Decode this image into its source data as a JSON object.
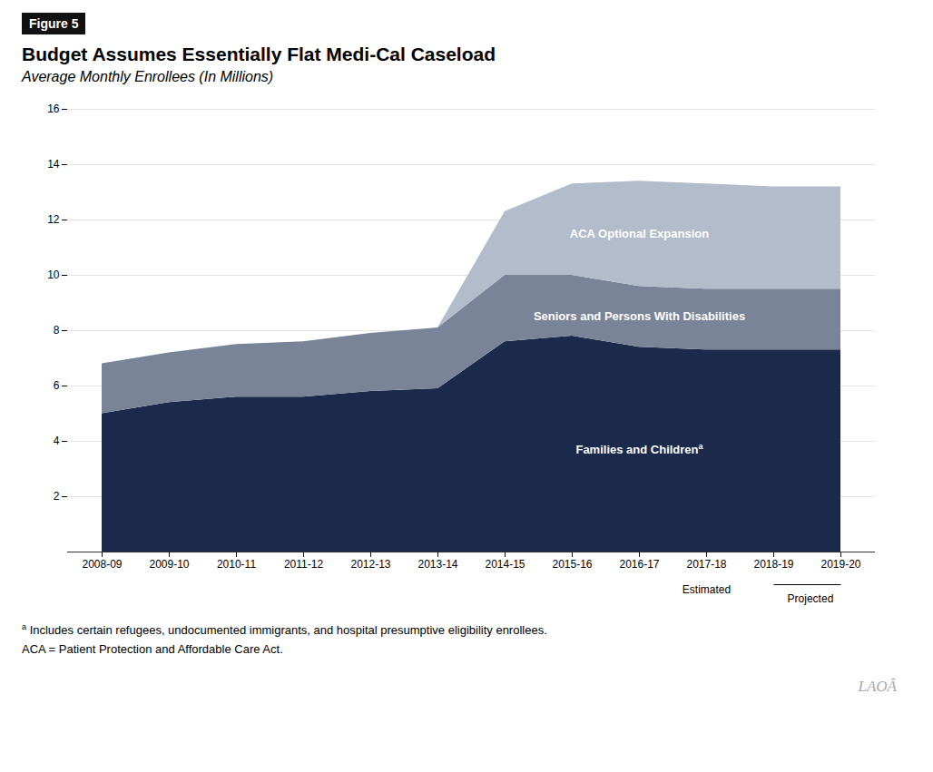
{
  "chart_data": {
    "type": "area",
    "stacked": true,
    "figure_label": "Figure 5",
    "title": "Budget Assumes Essentially Flat Medi-Cal Caseload",
    "subtitle": "Average Monthly Enrollees (In Millions)",
    "categories": [
      "2008-09",
      "2009-10",
      "2010-11",
      "2011-12",
      "2012-13",
      "2013-14",
      "2014-15",
      "2015-16",
      "2016-17",
      "2017-18",
      "2018-19",
      "2019-20"
    ],
    "series": [
      {
        "name": "Families and Children",
        "color": "#1B2A4A",
        "values": [
          5.0,
          5.4,
          5.6,
          5.6,
          5.8,
          5.9,
          7.6,
          7.8,
          7.4,
          7.3,
          7.3,
          7.3
        ]
      },
      {
        "name": "Seniors and Persons With Disabilities",
        "color": "#7A8499",
        "values": [
          1.8,
          1.8,
          1.9,
          2.0,
          2.1,
          2.2,
          2.4,
          2.2,
          2.2,
          2.2,
          2.2,
          2.2
        ]
      },
      {
        "name": "ACA Optional Expansion",
        "color": "#B3BCCA",
        "values": [
          0.0,
          0.0,
          0.0,
          0.0,
          0.0,
          0.0,
          2.3,
          3.3,
          3.8,
          3.8,
          3.7,
          3.7
        ]
      }
    ],
    "ylim": [
      0,
      16
    ],
    "yticks": [
      2,
      4,
      6,
      8,
      10,
      12,
      14,
      16
    ],
    "grid": true,
    "annotations": [
      {
        "text": "Estimated",
        "x": "2017-18"
      },
      {
        "text": "Projected",
        "x": [
          "2018-19",
          "2019-20"
        ]
      },
      {
        "text": "LAOÂ"
      }
    ],
    "footnotes": [
      {
        "marker": "a",
        "series": "Families and Children",
        "text": "Includes certain refugees, undocumented immigrants, and hospital presumptive eligibility enrollees."
      },
      {
        "text": "ACA = Patient Protection and Affordable Care Act."
      }
    ]
  }
}
